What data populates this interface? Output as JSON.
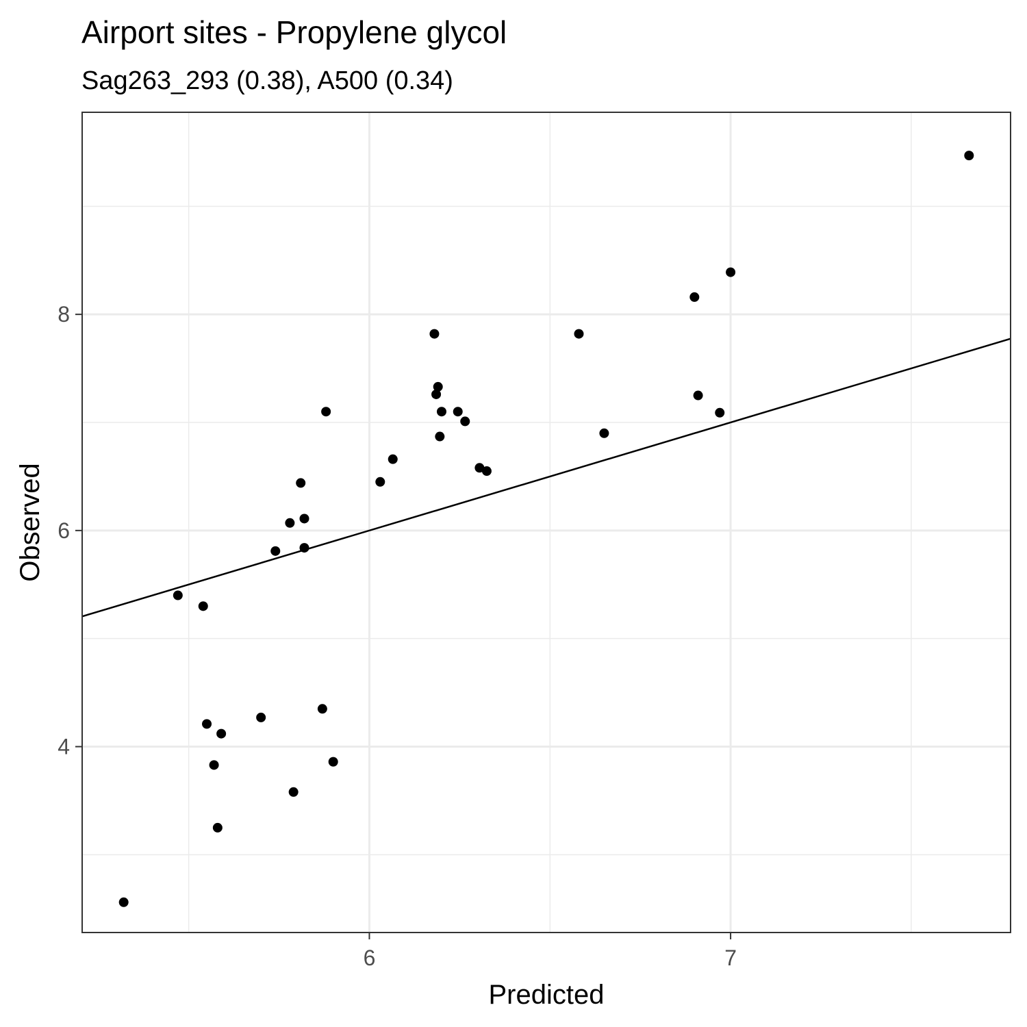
{
  "chart_data": {
    "type": "scatter",
    "title": "Airport sites - Propylene glycol",
    "subtitle": "Sag263_293 (0.38), A500 (0.34)",
    "xlabel": "Predicted",
    "ylabel": "Observed",
    "xlim": [
      5.205,
      7.775
    ],
    "ylim": [
      2.28,
      9.87
    ],
    "x_ticks_major": [
      6,
      7
    ],
    "x_ticks_minor": [
      5.5,
      6.5,
      7.5
    ],
    "y_ticks_major": [
      4,
      6,
      8
    ],
    "y_ticks_minor": [
      3,
      5,
      7,
      9
    ],
    "grid": true,
    "legend": "none",
    "colors": {
      "points": "#000000",
      "line": "#000000",
      "grid": "#ebebeb",
      "panel_border": "#333333"
    },
    "fit_line": {
      "slope": 1,
      "intercept": 0
    },
    "points": [
      {
        "x": 5.32,
        "y": 2.56
      },
      {
        "x": 5.47,
        "y": 5.4
      },
      {
        "x": 5.54,
        "y": 5.3
      },
      {
        "x": 5.55,
        "y": 4.21
      },
      {
        "x": 5.57,
        "y": 3.83
      },
      {
        "x": 5.58,
        "y": 3.25
      },
      {
        "x": 5.59,
        "y": 4.12
      },
      {
        "x": 5.7,
        "y": 4.27
      },
      {
        "x": 5.74,
        "y": 5.81
      },
      {
        "x": 5.78,
        "y": 6.07
      },
      {
        "x": 5.79,
        "y": 3.58
      },
      {
        "x": 5.81,
        "y": 6.44
      },
      {
        "x": 5.82,
        "y": 6.11
      },
      {
        "x": 5.82,
        "y": 5.84
      },
      {
        "x": 5.87,
        "y": 4.35
      },
      {
        "x": 5.88,
        "y": 7.1
      },
      {
        "x": 5.9,
        "y": 3.86
      },
      {
        "x": 6.03,
        "y": 6.45
      },
      {
        "x": 6.065,
        "y": 6.66
      },
      {
        "x": 6.18,
        "y": 7.82
      },
      {
        "x": 6.185,
        "y": 7.26
      },
      {
        "x": 6.19,
        "y": 7.33
      },
      {
        "x": 6.195,
        "y": 6.87
      },
      {
        "x": 6.2,
        "y": 7.1
      },
      {
        "x": 6.245,
        "y": 7.1
      },
      {
        "x": 6.265,
        "y": 7.01
      },
      {
        "x": 6.305,
        "y": 6.58
      },
      {
        "x": 6.325,
        "y": 6.55
      },
      {
        "x": 6.58,
        "y": 7.82
      },
      {
        "x": 6.65,
        "y": 6.9
      },
      {
        "x": 6.9,
        "y": 8.16
      },
      {
        "x": 6.91,
        "y": 7.25
      },
      {
        "x": 6.97,
        "y": 7.09
      },
      {
        "x": 7.0,
        "y": 8.39
      },
      {
        "x": 7.66,
        "y": 9.47
      }
    ]
  }
}
